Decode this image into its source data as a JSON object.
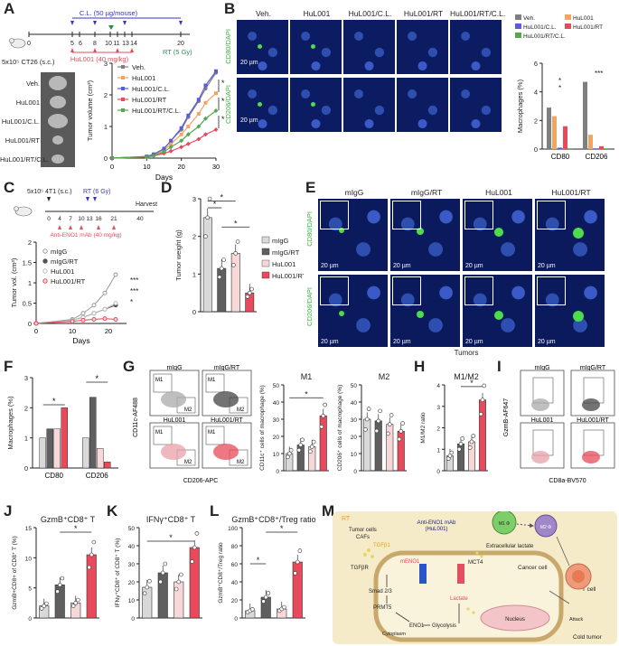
{
  "panel_letters": [
    "A",
    "B",
    "C",
    "D",
    "E",
    "F",
    "G",
    "H",
    "I",
    "J",
    "K",
    "L",
    "M"
  ],
  "panelA": {
    "cl_label": "C.L. (50 µg/mouse)",
    "timeline_days": [
      "0",
      "5",
      "6",
      "8",
      "10",
      "11",
      "13",
      "14",
      "20"
    ],
    "hu_label": "HuL001 (40 mg/kg)",
    "rt_label": "RT (5 Gy)",
    "cells_label": "5x10⁵ CT26 (s.c.)",
    "tumor_groups": [
      "Veh.",
      "HuL001",
      "HuL001/C.L.",
      "HuL001/RT",
      "HuL001/RT/C.L."
    ],
    "sig": [
      "*",
      "*",
      "*"
    ]
  },
  "panelB": {
    "columns": [
      "Veh.",
      "HuL001",
      "HuL001/C.L.",
      "HuL001/RT",
      "HuL001/RT/C.L."
    ],
    "rows": [
      "CD80/DAPI",
      "CD206/DAPI"
    ],
    "scale": "20 µm",
    "sig": [
      "*",
      "*",
      "***"
    ]
  },
  "panelC": {
    "cells_label": "5x10⁵ 4T1 (s.c.)",
    "rt_label": "RT (6 Gy)",
    "harvest": "Harvest",
    "timeline_days": [
      "0",
      "4",
      "7",
      "10",
      "13",
      "16",
      "21",
      "40"
    ],
    "mab_label": "Anti-ENO1 mAb (40 mg/kg)",
    "sig": [
      "***",
      "***",
      "*"
    ]
  },
  "panelE": {
    "columns": [
      "mIgG",
      "mIgG/RT",
      "HuL001",
      "HuL001/RT"
    ],
    "rows": [
      "CD80/DAPI",
      "CD206/DAPI"
    ],
    "scale": "20 µm",
    "footer": "Tumors"
  },
  "panelG": {
    "flow_titles": [
      "mIgG",
      "mIgG/RT",
      "HuL001",
      "HuL001/RT"
    ],
    "gate_m1": "M1",
    "gate_m2": "M2",
    "y_axis": "CD11c-AF488",
    "x_axis": "CD206-APC",
    "ticks": [
      "0",
      "10³",
      "10⁴",
      "10⁵"
    ]
  },
  "panelI": {
    "titles": [
      "mIgG",
      "mIgG/RT",
      "HuL001",
      "HuL001/RT"
    ],
    "y_axis": "GzmB-AF647",
    "x_axis": "CD8a-BV570"
  },
  "panelM": {
    "rt": "RT",
    "cells": [
      "Tumor cells",
      "CAFs"
    ],
    "tgfb1": "TGFβ1",
    "tgfbr": "TGFβR",
    "mab": [
      "Anti-ENO1 mAb",
      "(HuL001)"
    ],
    "meno1": "mENO1",
    "smad": "Smad 2/3",
    "prmt5": "PRMT5",
    "eno1": "ENO1",
    "glycolysis": "Glycolysis",
    "lactate": "Lactate",
    "ex_lactate": "Extracellular lactate",
    "mct4": "MCT4",
    "nucleus": "Nucleus",
    "cytoplasm": "Cytoplasm",
    "cancer_cell": "Cancer cell",
    "tcell": "T cell",
    "attack": "Attack",
    "cold": "Cold tumor",
    "m1": "M1 Φ",
    "m2": "M2 Φ"
  },
  "colors": {
    "veh": "#7f7f7f",
    "hul001": "#f4a460",
    "hul_cl": "#5b5bdc",
    "hul_rt": "#e8495b",
    "hul_rt_cl": "#55a84f",
    "migg": "#d9d9d9",
    "migg_rt": "#5f5f5f",
    "hul001_light": "#f8d7d9",
    "hul001_rt": "#e8495b"
  },
  "chart_data": [
    {
      "id": "A",
      "type": "line",
      "title": "",
      "xlabel": "Days",
      "ylabel": "Tumor volume (cm³)",
      "xlim": [
        0,
        30
      ],
      "ylim": [
        0,
        3
      ],
      "x": [
        0,
        10,
        12,
        15,
        17,
        20,
        22,
        25,
        27,
        30
      ],
      "series": [
        {
          "name": "Veh.",
          "values": [
            0,
            0.05,
            0.12,
            0.3,
            0.55,
            0.9,
            1.3,
            1.8,
            2.2,
            2.7
          ]
        },
        {
          "name": "HuL001",
          "values": [
            0,
            0.05,
            0.1,
            0.25,
            0.45,
            0.75,
            1.0,
            1.4,
            1.75,
            2.05
          ]
        },
        {
          "name": "HuL001/C.L.",
          "values": [
            0,
            0.05,
            0.12,
            0.3,
            0.55,
            0.95,
            1.35,
            1.85,
            2.3,
            2.75
          ]
        },
        {
          "name": "HuL001/RT",
          "values": [
            0,
            0.03,
            0.07,
            0.15,
            0.22,
            0.35,
            0.45,
            0.6,
            0.75,
            0.9
          ]
        },
        {
          "name": "HuL001/RT/C.L.",
          "values": [
            0,
            0.04,
            0.08,
            0.2,
            0.35,
            0.55,
            0.75,
            1.0,
            1.25,
            1.5
          ]
        }
      ]
    },
    {
      "id": "B",
      "type": "bar",
      "title": "",
      "ylabel": "Macrophages (%)",
      "ylim": [
        0,
        6
      ],
      "categories": [
        "CD80",
        "CD206"
      ],
      "series": [
        {
          "name": "Veh.",
          "values": [
            2.9,
            4.7
          ]
        },
        {
          "name": "HuL001",
          "values": [
            2.3,
            1.0
          ]
        },
        {
          "name": "HuL001/C.L.",
          "values": [
            0.1,
            0.05
          ]
        },
        {
          "name": "HuL001/RT",
          "values": [
            1.6,
            0.2
          ]
        },
        {
          "name": "HuL001/RT/C.L.",
          "values": [
            0.05,
            0.05
          ]
        }
      ]
    },
    {
      "id": "C",
      "type": "line",
      "title": "",
      "xlabel": "Days",
      "ylabel": "Tumor vol. (cm³)",
      "xlim": [
        0,
        25
      ],
      "ylim": [
        0,
        2
      ],
      "x": [
        0,
        10,
        13,
        16,
        19,
        22
      ],
      "series": [
        {
          "name": "mIgG",
          "values": [
            0,
            0.1,
            0.25,
            0.45,
            0.75,
            1.2
          ]
        },
        {
          "name": "mIgG/RT",
          "values": [
            0,
            0.08,
            0.15,
            0.25,
            0.35,
            0.45
          ]
        },
        {
          "name": "HuL001",
          "values": [
            0,
            0.08,
            0.15,
            0.25,
            0.35,
            0.5
          ]
        },
        {
          "name": "HuL001/RT",
          "values": [
            0,
            0.05,
            0.08,
            0.1,
            0.12,
            0.1
          ]
        }
      ]
    },
    {
      "id": "D",
      "type": "bar",
      "title": "",
      "ylabel": "Tumor weight (g)",
      "ylim": [
        0,
        3
      ],
      "categories": [
        "mIgG",
        "mIgG/RT",
        "HuL001",
        "HuL001/RT"
      ],
      "values": [
        2.5,
        1.15,
        1.55,
        0.5
      ]
    },
    {
      "id": "F",
      "type": "bar",
      "title": "",
      "ylabel": "Macrophages (%)",
      "ylim": [
        0,
        3
      ],
      "categories": [
        "CD80",
        "CD206"
      ],
      "series": [
        {
          "name": "mIgG",
          "values": [
            1.0,
            1.0
          ]
        },
        {
          "name": "mIgG/RT",
          "values": [
            1.3,
            2.35
          ]
        },
        {
          "name": "HuL001",
          "values": [
            1.3,
            0.65
          ]
        },
        {
          "name": "HuL001/RT",
          "values": [
            2.0,
            0.2
          ]
        }
      ]
    },
    {
      "id": "G-M1",
      "type": "bar",
      "title": "M1",
      "ylabel": "CD11c⁺ cells of macrophage (%)",
      "ylim": [
        0,
        50
      ],
      "categories": [
        "mIgG",
        "mIgG/RT",
        "HuL001",
        "HuL001/RT"
      ],
      "values": [
        10,
        15,
        14,
        32
      ]
    },
    {
      "id": "G-M2",
      "type": "bar",
      "title": "M2",
      "ylabel": "CD206⁺ cells of macrophage (%)",
      "ylim": [
        0,
        50
      ],
      "categories": [
        "mIgG",
        "mIgG/RT",
        "HuL001",
        "HuL001/RT"
      ],
      "values": [
        30,
        29,
        27,
        23
      ]
    },
    {
      "id": "H",
      "type": "bar",
      "title": "M1/M2",
      "ylabel": "M1/M2 ratio",
      "ylim": [
        0,
        4
      ],
      "categories": [
        "mIgG",
        "mIgG/RT",
        "HuL001",
        "HuL001/RT"
      ],
      "values": [
        0.7,
        1.25,
        1.35,
        3.3
      ]
    },
    {
      "id": "J",
      "type": "bar",
      "title": "GzmB⁺CD8⁺ T",
      "ylabel": "GzmB+CD8+ of CD8⁺ T (%)",
      "ylim": [
        0,
        15
      ],
      "categories": [
        "mIgG",
        "mIgG/RT",
        "HuL001",
        "HuL001/RT"
      ],
      "values": [
        2,
        5.5,
        2.5,
        10.5
      ]
    },
    {
      "id": "K",
      "type": "bar",
      "title": "IFNγ⁺CD8⁺ T",
      "ylabel": "IFNγ⁺CD8⁺ of CD8⁺ T (%)",
      "ylim": [
        0,
        50
      ],
      "categories": [
        "mIgG",
        "mIgG/RT",
        "HuL001",
        "HuL001/RT"
      ],
      "values": [
        17,
        25,
        20,
        39
      ]
    },
    {
      "id": "L",
      "type": "bar",
      "title": "GzmB⁺CD8⁺/Treg ratio",
      "ylabel": "GzmB⁺CD8⁺/Treg ratio",
      "ylim": [
        0,
        100
      ],
      "categories": [
        "mIgG",
        "mIgG/RT",
        "HuL001",
        "HuL001/RT"
      ],
      "values": [
        8,
        23,
        10,
        62
      ]
    }
  ]
}
